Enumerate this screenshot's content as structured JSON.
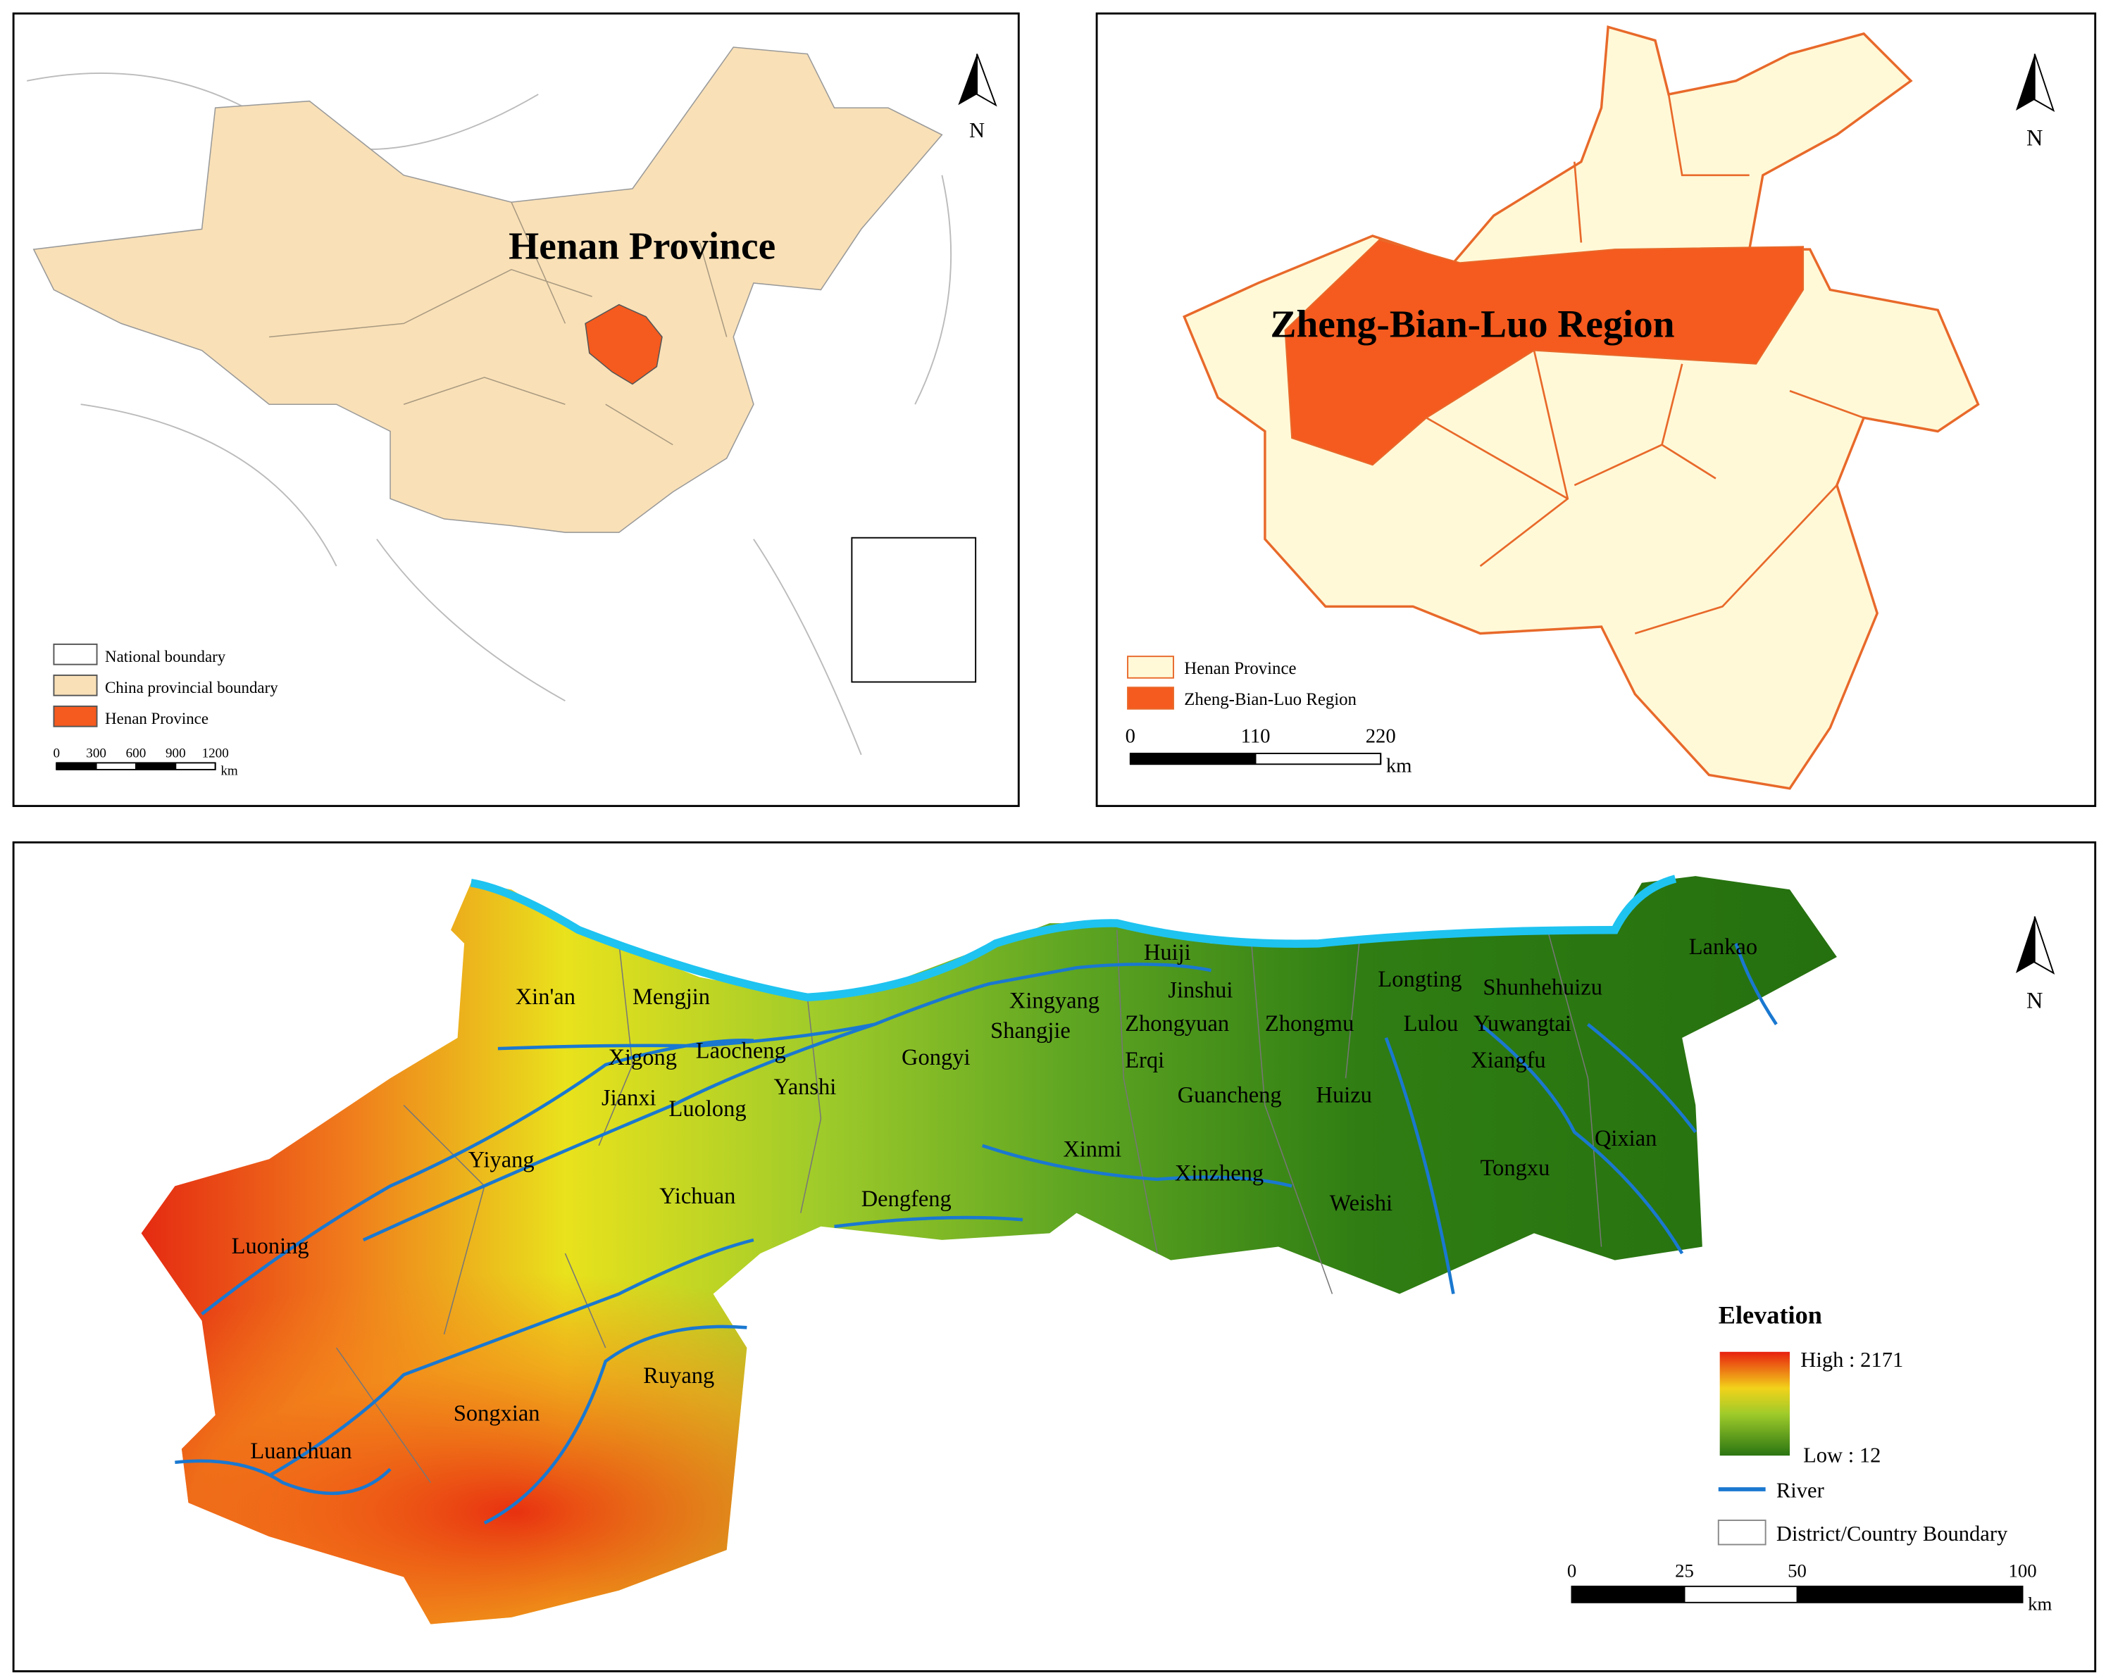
{
  "panel_a": {
    "title": "Henan Province",
    "north": "N",
    "legend": [
      "National boundary",
      "China provincial boundary",
      "Henan Province"
    ],
    "scale": {
      "ticks": [
        0,
        300,
        600,
        900,
        1200
      ],
      "unit": "km"
    }
  },
  "panel_b": {
    "title": "Zheng-Bian-Luo Region",
    "north": "N",
    "legend": [
      "Henan Province",
      "Zheng-Bian-Luo Region"
    ],
    "scale": {
      "ticks": [
        0,
        110,
        220
      ],
      "unit": "km"
    }
  },
  "panel_c": {
    "north": "N",
    "places": [
      "Xin'an",
      "Mengjin",
      "Xigong",
      "Laocheng",
      "Jianxi",
      "Luolong",
      "Yanshi",
      "Gongyi",
      "Xingyang",
      "Shangjie",
      "Huiji",
      "Jinshui",
      "Zhongyuan",
      "Erqi",
      "Guancheng",
      "Huizu",
      "Zhongmu",
      "Longting",
      "Shunhehuizu",
      "Lulou",
      "Yuwangtai",
      "Xiangfu",
      "Lankao",
      "Qixian",
      "Tongxu",
      "Weishi",
      "Xinzheng",
      "Xinmi",
      "Dengfeng",
      "Yichuan",
      "Yiyang",
      "Luoning",
      "Ruyang",
      "Songxian",
      "Luanchuan"
    ],
    "legend": {
      "title": "Elevation",
      "high": "High : 2171",
      "low": "Low : 12",
      "items": [
        "River",
        "District/Country Boundary"
      ]
    },
    "scale": {
      "ticks": [
        0,
        25,
        50,
        100
      ],
      "unit": "km"
    }
  }
}
